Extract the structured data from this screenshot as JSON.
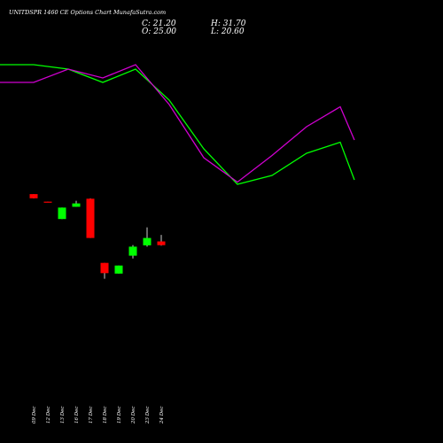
{
  "chart_data": {
    "type": "candlestick",
    "title": "UNITDSPR 1460 CE Options Chart MunafaSutra.com",
    "ohlc_labels": {
      "close": "C: 21.20",
      "high": "H: 31.70",
      "open": "O: 25.00",
      "low": "L: 20.60"
    },
    "dates": [
      "09 Dec",
      "12 Dec",
      "13 Dec",
      "16 Dec",
      "17 Dec",
      "18 Dec",
      "19 Dec",
      "20 Dec",
      "23 Dec",
      "24 Dec"
    ],
    "candles": [
      {
        "open": 73.5,
        "high": 73.5,
        "low": 69.2,
        "close": 69.2
      },
      {
        "open": 65.8,
        "high": 65.8,
        "low": 65.2,
        "close": 65.5
      },
      {
        "open": 48.0,
        "high": 59.7,
        "low": 48.0,
        "close": 59.7
      },
      {
        "open": 60.5,
        "high": 66.7,
        "low": 60.5,
        "close": 64.0
      },
      {
        "open": 68.8,
        "high": 69.2,
        "low": 28.5,
        "close": 28.5
      },
      {
        "open": 3.0,
        "high": 3.0,
        "low": -13.3,
        "close": -7.5
      },
      {
        "open": -8.0,
        "high": 0.3,
        "low": -8.0,
        "close": 0.3
      },
      {
        "open": 10.3,
        "high": 21.3,
        "low": 7.5,
        "close": 19.6
      },
      {
        "open": 21.0,
        "high": 39.5,
        "low": 19.6,
        "close": 28.5
      },
      {
        "open": 25.0,
        "high": 31.7,
        "low": 20.6,
        "close": 21.2
      }
    ],
    "line_series": [
      {
        "color": "#00ff00",
        "values": [
          100.2,
          100.2,
          100.0,
          99.4,
          100.0,
          98.6,
          96.4,
          94.8,
          95.2,
          96.2,
          96.7,
          95.0
        ]
      },
      {
        "color": "#d000d0",
        "values": [
          99.4,
          99.4,
          100.0,
          99.6,
          100.2,
          98.4,
          96.0,
          94.9,
          96.1,
          97.4,
          98.3,
          96.8
        ]
      }
    ],
    "colors": {
      "background": "#000000",
      "up": "#00ff00",
      "down": "#ff0000",
      "wick": "#ffffff"
    }
  }
}
